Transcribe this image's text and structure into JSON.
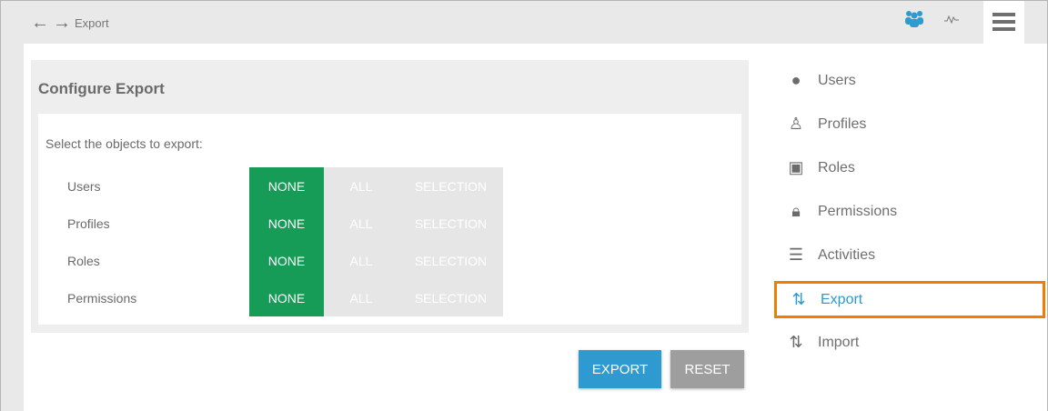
{
  "header": {
    "breadcrumb": "Export",
    "back_icon": "arrow-left-icon",
    "forward_icon": "arrow-right-icon",
    "icons": [
      "users-group-icon",
      "activity-pulse-icon",
      "hamburger-menu-icon"
    ]
  },
  "panel": {
    "title": "Configure Export",
    "lead": "Select the objects to export:",
    "options": [
      "NONE",
      "ALL",
      "SELECTION"
    ],
    "rows": [
      {
        "label": "Users",
        "selected": "NONE"
      },
      {
        "label": "Profiles",
        "selected": "NONE"
      },
      {
        "label": "Roles",
        "selected": "NONE"
      },
      {
        "label": "Permissions",
        "selected": "NONE"
      }
    ]
  },
  "buttons": {
    "export": "EXPORT",
    "reset": "RESET"
  },
  "sidebar": {
    "items": [
      {
        "label": "Users",
        "icon": "account-circle-icon"
      },
      {
        "label": "Profiles",
        "icon": "person-outline-icon"
      },
      {
        "label": "Roles",
        "icon": "badge-icon"
      },
      {
        "label": "Permissions",
        "icon": "lock-icon"
      },
      {
        "label": "Activities",
        "icon": "numbered-list-icon"
      },
      {
        "label": "Export",
        "icon": "swap-vertical-icon",
        "active": true
      },
      {
        "label": "Import",
        "icon": "swap-vertical-icon"
      }
    ]
  },
  "colors": {
    "accent": "#2e9ad0",
    "selected": "#169c56",
    "highlight": "#f07c00",
    "reset": "#9e9e9e"
  }
}
